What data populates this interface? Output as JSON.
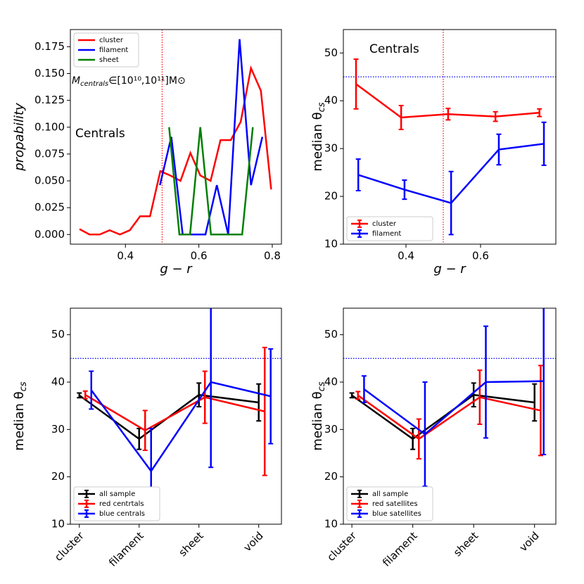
{
  "chart_data": [
    {
      "type": "line",
      "xlabel": "g − r",
      "ylabel": "propability",
      "xlim": [
        0.25,
        0.825
      ],
      "xticks": [
        0.4,
        0.6,
        0.8
      ],
      "ylim": [
        -0.009,
        0.191
      ],
      "yticks": [
        {
          "value": 0,
          "label": "0.000"
        },
        {
          "value": 0.025,
          "label": "0.025"
        },
        {
          "value": 0.05,
          "label": "0.050"
        },
        {
          "value": 0.075,
          "label": "0.075"
        },
        {
          "value": 0.1,
          "label": "0.100"
        },
        {
          "value": 0.125,
          "label": "0.125"
        },
        {
          "value": 0.15,
          "label": "0.150"
        },
        {
          "value": 0.175,
          "label": "0.175"
        }
      ],
      "legend": "upper left",
      "vlines": [
        {
          "x": 0.5,
          "color": "#ff0000"
        }
      ],
      "annotations": [
        {
          "text": "M",
          "sub": "centrals",
          "tail": "∈[10¹⁰,10¹¹]M⊙"
        },
        {
          "text": "Centrals"
        }
      ],
      "series": [
        {
          "name": "cluster",
          "color": "#ff0000",
          "x": [
            0.275,
            0.302,
            0.33,
            0.357,
            0.385,
            0.412,
            0.44,
            0.467,
            0.495,
            0.522,
            0.55,
            0.577,
            0.604,
            0.632,
            0.659,
            0.687,
            0.714,
            0.742,
            0.769,
            0.797
          ],
          "values": [
            0.005,
            0.0,
            0.0,
            0.004,
            0.0,
            0.004,
            0.017,
            0.017,
            0.059,
            0.055,
            0.05,
            0.076,
            0.055,
            0.05,
            0.088,
            0.088,
            0.105,
            0.155,
            0.134,
            0.042
          ]
        },
        {
          "name": "filament",
          "color": "#0000ff",
          "x": [
            0.494,
            0.525,
            0.556,
            0.587,
            0.618,
            0.649,
            0.68,
            0.711,
            0.742,
            0.773
          ],
          "values": [
            0.046,
            0.091,
            0.0,
            0.0,
            0.0,
            0.046,
            0.0,
            0.182,
            0.046,
            0.091
          ]
        },
        {
          "name": "sheet",
          "color": "#008000",
          "x": [
            0.519,
            0.547,
            0.576,
            0.604,
            0.633,
            0.661,
            0.69,
            0.718,
            0.747
          ],
          "values": [
            0.1,
            0.0,
            0.0,
            0.1,
            0.0,
            0.0,
            0.0,
            0.0,
            0.1
          ]
        }
      ]
    },
    {
      "type": "errorbar",
      "xlabel": "g − r",
      "ylabel": "median θ",
      "ylabel_sub": "cs",
      "xlim": [
        0.232,
        0.802
      ],
      "xticks": [
        0.4,
        0.6
      ],
      "ylim": [
        10,
        54.9
      ],
      "yticks": [
        10,
        20,
        30,
        40,
        50
      ],
      "legend": "lower left",
      "vlines": [
        {
          "x": 0.5,
          "color": "#ff0000"
        }
      ],
      "hlines": [
        {
          "y": 45,
          "color": "#0000ff"
        }
      ],
      "annotations": [
        {
          "text": "Centrals"
        }
      ],
      "series": [
        {
          "name": "cluster",
          "color": "#ff0000",
          "x": [
            0.266,
            0.387,
            0.513,
            0.64,
            0.758
          ],
          "values": [
            43.5,
            36.5,
            37.2,
            36.7,
            37.5
          ],
          "errors": [
            5.2,
            2.5,
            1.2,
            1.0,
            0.8
          ]
        },
        {
          "name": "filament",
          "color": "#0000ff",
          "x": [
            0.272,
            0.396,
            0.521,
            0.649,
            0.77
          ],
          "values": [
            24.5,
            21.4,
            18.6,
            29.8,
            31.0
          ],
          "errors": [
            3.3,
            2.0,
            6.6,
            3.2,
            4.5
          ]
        }
      ]
    },
    {
      "type": "errorbar",
      "ylabel": "median θ",
      "ylabel_sub": "cs",
      "xlim": [
        -0.15,
        3.38
      ],
      "xticks": [
        {
          "value": 0,
          "label": "cluster"
        },
        {
          "value": 1,
          "label": "filament"
        },
        {
          "value": 2,
          "label": "sheet"
        },
        {
          "value": 3,
          "label": "void"
        }
      ],
      "xtick_rotation": 45,
      "ylim": [
        10,
        55.6
      ],
      "yticks": [
        10,
        20,
        30,
        40,
        50
      ],
      "legend": "lower left",
      "hlines": [
        {
          "y": 45,
          "color": "#0000ff"
        }
      ],
      "series": [
        {
          "name": "all sample",
          "color": "#000000",
          "x": [
            0,
            1,
            2,
            3
          ],
          "values": [
            37.2,
            28.0,
            37.3,
            35.7
          ],
          "errors": [
            0.5,
            2.2,
            2.5,
            3.9
          ]
        },
        {
          "name": "red centrtals",
          "color": "#ff0000",
          "x": [
            0.1,
            1.1,
            2.1,
            3.1
          ],
          "values": [
            37.3,
            29.8,
            36.8,
            33.8
          ],
          "errors": [
            0.8,
            4.2,
            5.5,
            13.5
          ]
        },
        {
          "name": "blue centrals",
          "color": "#0000ff",
          "x": [
            0.2,
            1.2,
            2.2,
            3.2
          ],
          "values": [
            38.3,
            21.2,
            40.0,
            37.0
          ],
          "errors": [
            4.0,
            9.0,
            18.0,
            10.0
          ]
        }
      ]
    },
    {
      "type": "errorbar",
      "ylabel": "median θ",
      "ylabel_sub": "cs",
      "xlim": [
        -0.14,
        3.35
      ],
      "xticks": [
        {
          "value": 0,
          "label": "cluster"
        },
        {
          "value": 1,
          "label": "filament"
        },
        {
          "value": 2,
          "label": "sheet"
        },
        {
          "value": 3,
          "label": "void"
        }
      ],
      "xtick_rotation": 45,
      "ylim": [
        10,
        55.6
      ],
      "yticks": [
        10,
        20,
        30,
        40,
        50
      ],
      "legend": "lower left",
      "hlines": [
        {
          "y": 45,
          "color": "#0000ff"
        }
      ],
      "series": [
        {
          "name": "all sample",
          "color": "#000000",
          "x": [
            0,
            1,
            2,
            3
          ],
          "values": [
            37.2,
            28.0,
            37.3,
            35.7
          ],
          "errors": [
            0.5,
            2.2,
            2.5,
            3.9
          ]
        },
        {
          "name": "red satellites",
          "color": "#ff0000",
          "x": [
            0.1,
            1.1,
            2.1,
            3.1
          ],
          "values": [
            37.2,
            28.0,
            36.8,
            34.0
          ],
          "errors": [
            0.8,
            4.2,
            5.7,
            9.5
          ]
        },
        {
          "name": "blue satellites",
          "color": "#0000ff",
          "x": [
            0.2,
            1.2,
            2.2,
            3.15
          ],
          "values": [
            38.5,
            29.0,
            40.0,
            40.2
          ],
          "errors": [
            2.8,
            11.0,
            11.8,
            15.5
          ]
        }
      ]
    }
  ]
}
